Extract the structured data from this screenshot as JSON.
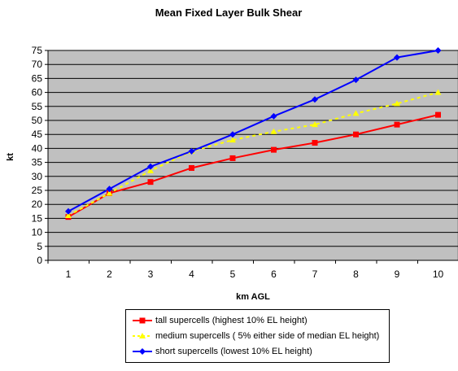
{
  "chart_data": {
    "type": "line",
    "title": "Mean Fixed Layer Bulk Shear",
    "xlabel": "km AGL",
    "ylabel": "kt",
    "categories": [
      "1",
      "2",
      "3",
      "4",
      "5",
      "6",
      "7",
      "8",
      "9",
      "10"
    ],
    "y_ticks": [
      "0",
      "5",
      "10",
      "15",
      "20",
      "25",
      "30",
      "35",
      "40",
      "45",
      "50",
      "55",
      "60",
      "65",
      "70",
      "75"
    ],
    "ylim": [
      0,
      75
    ],
    "grid": "horizontal",
    "legend_position": "bottom",
    "background_color": "#c0c0c0",
    "series": [
      {
        "name": "tall supercells (highest 10% EL height)",
        "values": [
          15.5,
          24,
          28,
          33,
          36.5,
          39.5,
          42,
          45,
          48.5,
          52
        ],
        "color": "#ff0000",
        "marker": "square",
        "line_style": "solid"
      },
      {
        "name": "medium supercells ( 5% either side of median EL height)",
        "values": [
          16,
          24,
          32,
          39,
          43,
          46,
          48.5,
          52.5,
          56,
          60
        ],
        "color": "#ffff00",
        "marker": "triangle",
        "line_style": "dashed"
      },
      {
        "name": "short supercells (lowest 10% EL height)",
        "values": [
          17.5,
          25.5,
          33.5,
          39,
          45,
          51.5,
          57.5,
          64.5,
          72.5,
          75
        ],
        "color": "#0000ff",
        "marker": "diamond",
        "line_style": "solid"
      }
    ]
  }
}
